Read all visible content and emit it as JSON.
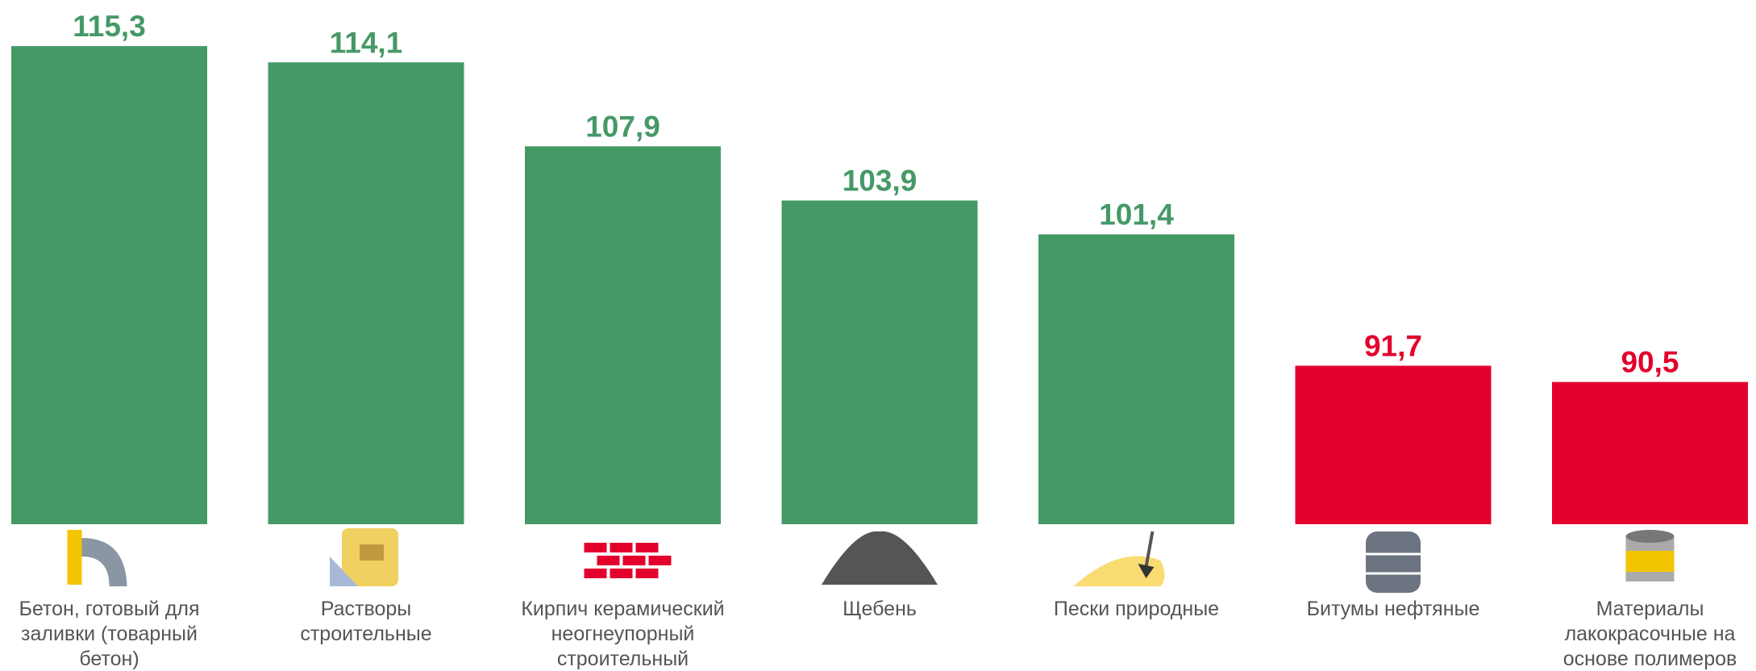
{
  "chart_data": {
    "type": "bar",
    "categories": [
      "Бетон, готовый для заливки (товарный бетон)",
      "Растворы строительные",
      "Кирпич керамический неогнеупорный строительный",
      "Щебень",
      "Пески природные",
      "Битумы нефтяные",
      "Материалы лакокрасочные на основе полимеров"
    ],
    "values": [
      115.3,
      114.1,
      107.9,
      103.9,
      101.4,
      91.7,
      90.5
    ],
    "value_labels": [
      "115,3",
      "114,1",
      "107,9",
      "103,9",
      "101,4",
      "91,7",
      "90,5"
    ],
    "colors": [
      "#459966",
      "#459966",
      "#459966",
      "#459966",
      "#459966",
      "#e3002c",
      "#e3002c"
    ],
    "ylim": [
      80,
      118.7
    ]
  }
}
